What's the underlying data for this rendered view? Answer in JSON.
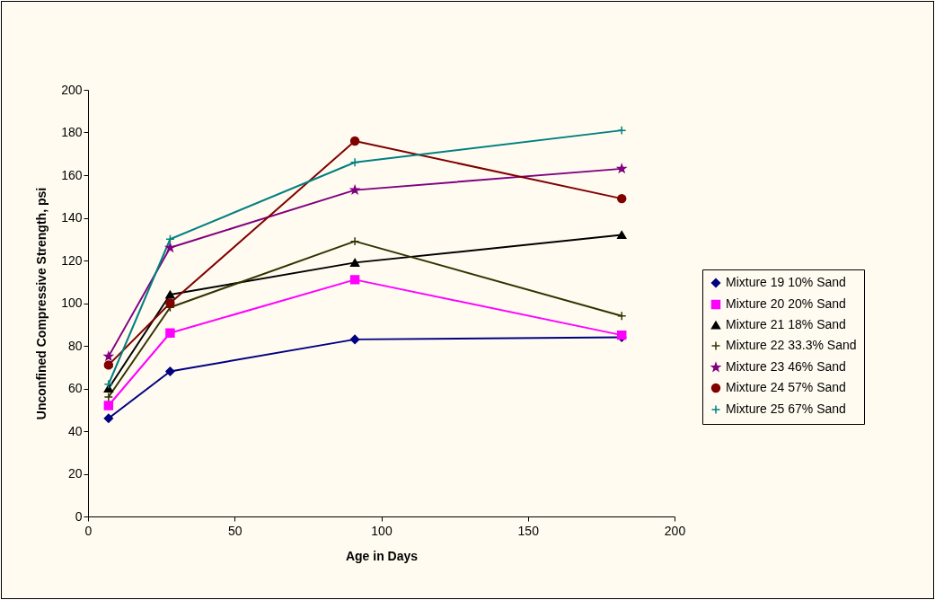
{
  "chart_data": {
    "type": "line",
    "xlabel": "Age in Days",
    "ylabel": "Unconfined Compressive Strength, psi",
    "x": [
      7,
      28,
      91,
      182
    ],
    "series": [
      {
        "name": "Mixture 19 10% Sand",
        "color": "#000080",
        "marker": "diamond",
        "values": [
          46,
          68,
          83,
          84
        ]
      },
      {
        "name": "Mixture 20 20% Sand",
        "color": "#ff00ff",
        "marker": "square",
        "values": [
          52,
          86,
          111,
          85
        ]
      },
      {
        "name": "Mixture 21 18% Sand",
        "color": "#000000",
        "marker": "triangle",
        "values": [
          60,
          104,
          119,
          132
        ]
      },
      {
        "name": "Mixture 22 33.3% Sand",
        "color": "#333300",
        "marker": "cross",
        "values": [
          56,
          98,
          129,
          94
        ]
      },
      {
        "name": "Mixture 23 46% Sand",
        "color": "#800080",
        "marker": "star",
        "values": [
          75,
          126,
          153,
          163
        ]
      },
      {
        "name": "Mixture 24 57% Sand",
        "color": "#800000",
        "marker": "circle",
        "values": [
          71,
          100,
          176,
          149
        ]
      },
      {
        "name": "Mixture 25 67% Sand",
        "color": "#008080",
        "marker": "cross",
        "values": [
          62,
          130,
          166,
          181
        ]
      }
    ],
    "xlim": [
      0,
      200
    ],
    "xticks": [
      0,
      50,
      100,
      150,
      200
    ],
    "ylim": [
      0,
      200
    ],
    "yticks": [
      0,
      20,
      40,
      60,
      80,
      100,
      120,
      140,
      160,
      180,
      200
    ],
    "grid": false,
    "legend": "right",
    "line_style": "solid"
  }
}
